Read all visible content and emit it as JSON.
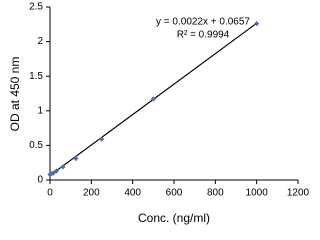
{
  "chart_data": {
    "type": "scatter",
    "x_label": "Conc. (ng/ml)",
    "y_label": "OD at 450 nm",
    "series": [
      {
        "name": "OD",
        "color": "#4f6fb0",
        "x": [
          0,
          7.8,
          15.6,
          31.3,
          62.5,
          125,
          250,
          500,
          1000
        ],
        "values": [
          0.08,
          0.09,
          0.1,
          0.13,
          0.19,
          0.31,
          0.59,
          1.17,
          2.26
        ]
      }
    ],
    "trendline": {
      "slope": 0.0022,
      "intercept": 0.0657,
      "color": "#000000",
      "label": "y = 0.0022x + 0.0657",
      "r2_label": "R² = 0.9994"
    },
    "xlim": [
      0,
      1200
    ],
    "xticks": [
      0,
      200,
      400,
      600,
      800,
      1000,
      1200
    ],
    "ylim": [
      0,
      2.5
    ],
    "yticks": [
      0,
      0.5,
      1,
      1.5,
      2,
      2.5
    ],
    "grid": false
  }
}
